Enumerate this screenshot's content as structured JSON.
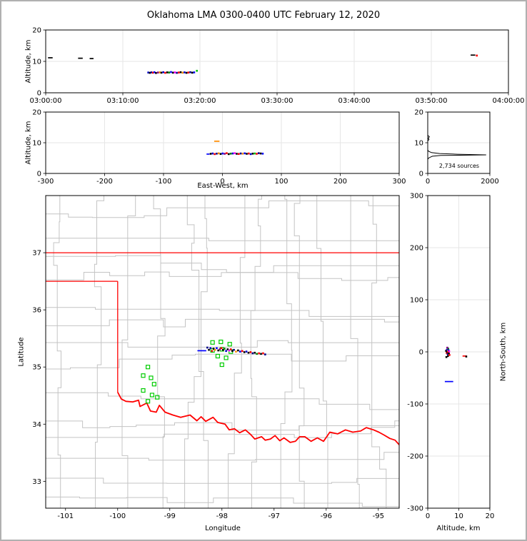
{
  "figure": {
    "title": "Oklahoma LMA 0300-0400 UTC February 12, 2020"
  },
  "chart_data": [
    {
      "id": "time_height",
      "type": "scatter",
      "title": "",
      "xlabel": "",
      "ylabel": "Altitude, km",
      "xlim": [
        0,
        60
      ],
      "ylim": [
        0,
        20
      ],
      "grid": true,
      "x_ticks": [
        {
          "v": 0,
          "label": "03:00:00"
        },
        {
          "v": 10,
          "label": "03:10:00"
        },
        {
          "v": 20,
          "label": "03:20:00"
        },
        {
          "v": 30,
          "label": "03:30:00"
        },
        {
          "v": 40,
          "label": "03:40:00"
        },
        {
          "v": 50,
          "label": "03:50:00"
        },
        {
          "v": 60,
          "label": "04:00:00"
        }
      ],
      "y_ticks": [
        {
          "v": 0,
          "label": "0"
        },
        {
          "v": 10,
          "label": "10"
        },
        {
          "v": 20,
          "label": "20"
        }
      ],
      "segments": [
        [
          0.3,
          11.15,
          0.9,
          11.15,
          "#000000"
        ],
        [
          4.2,
          11.0,
          4.8,
          11.0,
          "#000000"
        ],
        [
          5.7,
          10.9,
          6.2,
          10.9,
          "#000000"
        ],
        [
          55.1,
          12.0,
          55.7,
          12.0,
          "#000000"
        ]
      ],
      "points": [
        [
          13.3,
          6.45,
          "#0000cd"
        ],
        [
          13.5,
          6.35,
          "#000000"
        ],
        [
          13.7,
          6.5,
          "#00008b"
        ],
        [
          13.9,
          6.4,
          "#ff0000"
        ],
        [
          14.1,
          6.55,
          "#0000ff"
        ],
        [
          14.3,
          6.3,
          "#000000"
        ],
        [
          14.55,
          6.45,
          "#800080"
        ],
        [
          14.8,
          6.5,
          "#ff8c00"
        ],
        [
          15.0,
          6.4,
          "#000000"
        ],
        [
          15.25,
          6.55,
          "#0000cd"
        ],
        [
          15.5,
          6.35,
          "#ff0000"
        ],
        [
          15.75,
          6.5,
          "#000000"
        ],
        [
          16.0,
          6.45,
          "#008000"
        ],
        [
          16.25,
          6.6,
          "#0000ff"
        ],
        [
          16.5,
          6.4,
          "#000000"
        ],
        [
          16.75,
          6.5,
          "#ff00ff"
        ],
        [
          17.0,
          6.35,
          "#00008b"
        ],
        [
          17.25,
          6.45,
          "#ff0000"
        ],
        [
          17.5,
          6.55,
          "#000000"
        ],
        [
          17.75,
          6.4,
          "#ff8c00"
        ],
        [
          18.0,
          6.5,
          "#0000cd"
        ],
        [
          18.25,
          6.35,
          "#000000"
        ],
        [
          18.5,
          6.45,
          "#ff0000"
        ],
        [
          18.75,
          6.55,
          "#00008b"
        ],
        [
          19.0,
          6.4,
          "#000000"
        ],
        [
          19.25,
          6.5,
          "#0000ff"
        ],
        [
          19.6,
          7.0,
          "#00c000"
        ],
        [
          55.9,
          11.85,
          "#ff0000"
        ]
      ]
    },
    {
      "id": "ew_height",
      "type": "scatter",
      "xlabel": "East-West, km",
      "ylabel": "Altitude, km",
      "xlim": [
        -300,
        300
      ],
      "ylim": [
        0,
        20
      ],
      "grid": true,
      "x_ticks": [
        {
          "v": -300,
          "label": "-300"
        },
        {
          "v": -200,
          "label": "-200"
        },
        {
          "v": -100,
          "label": "-100"
        },
        {
          "v": 0,
          "label": "0"
        },
        {
          "v": 100,
          "label": "100"
        },
        {
          "v": 200,
          "label": "200"
        },
        {
          "v": 300,
          "label": "300"
        }
      ],
      "y_ticks": [
        {
          "v": 0,
          "label": "0"
        },
        {
          "v": 10,
          "label": "10"
        },
        {
          "v": 20,
          "label": "20"
        }
      ],
      "segments": [
        [
          -14,
          10.5,
          -5,
          10.5,
          "#ff8c00"
        ],
        [
          -27,
          6.3,
          -22,
          6.3,
          "#0000ff"
        ]
      ],
      "points": [
        [
          -20,
          6.4,
          "#000000"
        ],
        [
          -16.6,
          6.5,
          "#0000cd"
        ],
        [
          -13.2,
          6.3,
          "#ff0000"
        ],
        [
          -9.8,
          6.45,
          "#00008b"
        ],
        [
          -6.4,
          6.55,
          "#ff8c00"
        ],
        [
          -3,
          6.35,
          "#000000"
        ],
        [
          0.4,
          6.5,
          "#0000ff"
        ],
        [
          3.8,
          6.4,
          "#800080"
        ],
        [
          7.2,
          6.6,
          "#ff0000"
        ],
        [
          10.6,
          6.3,
          "#000000"
        ],
        [
          14,
          6.45,
          "#008000"
        ],
        [
          17.4,
          6.5,
          "#0000cd"
        ],
        [
          20.8,
          6.6,
          "#ff00ff"
        ],
        [
          24.2,
          6.4,
          "#000000"
        ],
        [
          27.6,
          6.35,
          "#ff0000"
        ],
        [
          31,
          6.5,
          "#00008b"
        ],
        [
          34.4,
          6.45,
          "#ff8c00"
        ],
        [
          37.8,
          6.55,
          "#0000ff"
        ],
        [
          41.2,
          6.4,
          "#000000"
        ],
        [
          44.6,
          6.5,
          "#ff0000"
        ],
        [
          48,
          6.3,
          "#0000cd"
        ],
        [
          51.4,
          6.45,
          "#000000"
        ],
        [
          54.8,
          6.5,
          "#00c000"
        ],
        [
          58.2,
          6.4,
          "#ff0000"
        ],
        [
          61.6,
          6.6,
          "#00008b"
        ],
        [
          65,
          6.5,
          "#000000"
        ],
        [
          68.4,
          6.45,
          "#0000ff"
        ]
      ]
    },
    {
      "id": "alt_histogram",
      "type": "line",
      "xlabel": "",
      "ylabel": "",
      "annotation": "2,734 sources",
      "xlim": [
        0,
        2000
      ],
      "ylim": [
        0,
        20
      ],
      "grid": true,
      "x_ticks": [
        {
          "v": 0,
          "label": "0"
        },
        {
          "v": 2000,
          "label": "2000"
        }
      ],
      "y_ticks": [
        {
          "v": 0,
          "label": "0"
        },
        {
          "v": 10,
          "label": "10"
        },
        {
          "v": 20,
          "label": "20"
        }
      ],
      "profile": [
        [
          0,
          4.6
        ],
        [
          40,
          5.1
        ],
        [
          150,
          5.6
        ],
        [
          420,
          5.85
        ],
        [
          1880,
          6.05
        ],
        [
          950,
          6.25
        ],
        [
          380,
          6.5
        ],
        [
          120,
          6.8
        ],
        [
          30,
          7.2
        ],
        [
          0,
          7.6
        ],
        [
          0,
          10.6
        ],
        [
          40,
          11.0
        ],
        [
          20,
          11.4
        ],
        [
          50,
          12.0
        ],
        [
          0,
          12.4
        ]
      ],
      "profile_color": "#000000"
    },
    {
      "id": "plan_view",
      "type": "scatter",
      "xlabel": "Longitude",
      "ylabel": "Latitude",
      "xlim": [
        -101.38,
        -94.6
      ],
      "ylim": [
        32.53,
        38.0
      ],
      "grid": false,
      "x_ticks": [
        {
          "v": -101,
          "label": "-101"
        },
        {
          "v": -100,
          "label": "-100"
        },
        {
          "v": -99,
          "label": "-99"
        },
        {
          "v": -98,
          "label": "-98"
        },
        {
          "v": -97,
          "label": "-97"
        },
        {
          "v": -96,
          "label": "-96"
        },
        {
          "v": -95,
          "label": "-95"
        }
      ],
      "y_ticks": [
        {
          "v": 33,
          "label": "33"
        },
        {
          "v": 34,
          "label": "34"
        },
        {
          "v": 35,
          "label": "35"
        },
        {
          "v": 36,
          "label": "36"
        },
        {
          "v": 37,
          "label": "37"
        }
      ],
      "border_color": "#ff0000",
      "county_grid": {
        "seed": 13,
        "lon_spacing": 0.52,
        "lat_spacing": 0.38,
        "jitter": 0.15,
        "color": "#c4c4c4"
      },
      "state_lines": [
        [
          [
            -101.38,
            37.0
          ],
          [
            -94.6,
            37.0
          ]
        ],
        [
          [
            -101.38,
            36.5
          ],
          [
            -100.0,
            36.5
          ]
        ],
        [
          [
            -100.0,
            36.5
          ],
          [
            -100.0,
            34.56
          ]
        ]
      ],
      "river": [
        [
          -100.0,
          34.56
        ],
        [
          -99.93,
          34.44
        ],
        [
          -99.84,
          34.4
        ],
        [
          -99.71,
          34.39
        ],
        [
          -99.6,
          34.42
        ],
        [
          -99.57,
          34.31
        ],
        [
          -99.44,
          34.37
        ],
        [
          -99.37,
          34.23
        ],
        [
          -99.26,
          34.21
        ],
        [
          -99.2,
          34.33
        ],
        [
          -99.09,
          34.21
        ],
        [
          -98.94,
          34.16
        ],
        [
          -98.79,
          34.12
        ],
        [
          -98.61,
          34.16
        ],
        [
          -98.48,
          34.06
        ],
        [
          -98.4,
          34.13
        ],
        [
          -98.31,
          34.05
        ],
        [
          -98.17,
          34.12
        ],
        [
          -98.08,
          34.03
        ],
        [
          -97.94,
          34.0
        ],
        [
          -97.86,
          33.9
        ],
        [
          -97.76,
          33.92
        ],
        [
          -97.66,
          33.85
        ],
        [
          -97.55,
          33.9
        ],
        [
          -97.45,
          33.82
        ],
        [
          -97.37,
          33.74
        ],
        [
          -97.24,
          33.78
        ],
        [
          -97.17,
          33.72
        ],
        [
          -97.07,
          33.74
        ],
        [
          -96.98,
          33.8
        ],
        [
          -96.89,
          33.71
        ],
        [
          -96.81,
          33.76
        ],
        [
          -96.69,
          33.68
        ],
        [
          -96.59,
          33.7
        ],
        [
          -96.51,
          33.78
        ],
        [
          -96.41,
          33.78
        ],
        [
          -96.29,
          33.7
        ],
        [
          -96.17,
          33.76
        ],
        [
          -96.05,
          33.7
        ],
        [
          -95.93,
          33.86
        ],
        [
          -95.78,
          33.83
        ],
        [
          -95.63,
          33.9
        ],
        [
          -95.49,
          33.86
        ],
        [
          -95.34,
          33.88
        ],
        [
          -95.23,
          33.94
        ],
        [
          -95.09,
          33.9
        ],
        [
          -94.99,
          33.86
        ],
        [
          -94.89,
          33.81
        ],
        [
          -94.78,
          33.75
        ],
        [
          -94.68,
          33.72
        ],
        [
          -94.6,
          33.64
        ]
      ],
      "station_color": "#00cc00",
      "stations": [
        [
          -99.42,
          35.0
        ],
        [
          -99.51,
          34.85
        ],
        [
          -99.36,
          34.81
        ],
        [
          -99.3,
          34.7
        ],
        [
          -99.51,
          34.59
        ],
        [
          -99.34,
          34.51
        ],
        [
          -99.42,
          34.4
        ],
        [
          -99.24,
          34.47
        ],
        [
          -98.18,
          35.43
        ],
        [
          -98.02,
          35.44
        ],
        [
          -97.85,
          35.4
        ],
        [
          -98.18,
          35.29
        ],
        [
          -98.0,
          35.31
        ],
        [
          -97.83,
          35.27
        ],
        [
          -98.08,
          35.19
        ],
        [
          -97.92,
          35.16
        ],
        [
          -98.0,
          35.04
        ]
      ],
      "segments": [
        [
          -98.47,
          35.285,
          -98.3,
          35.285,
          "#0000ff"
        ]
      ],
      "points": [
        [
          -98.28,
          35.34,
          "#00008b"
        ],
        [
          -98.25,
          35.3,
          "#000000"
        ],
        [
          -98.22,
          35.33,
          "#0000cd"
        ],
        [
          -98.19,
          35.28,
          "#ff0000"
        ],
        [
          -98.16,
          35.32,
          "#000000"
        ],
        [
          -98.13,
          35.3,
          "#ff8c00"
        ],
        [
          -98.1,
          35.33,
          "#0000ff"
        ],
        [
          -98.07,
          35.29,
          "#000000"
        ],
        [
          -98.04,
          35.31,
          "#800080"
        ],
        [
          -98.01,
          35.33,
          "#ff0000"
        ],
        [
          -97.98,
          35.3,
          "#000000"
        ],
        [
          -97.95,
          35.32,
          "#008000"
        ],
        [
          -97.92,
          35.28,
          "#0000cd"
        ],
        [
          -97.89,
          35.31,
          "#000000"
        ],
        [
          -97.86,
          35.29,
          "#ff00ff"
        ],
        [
          -97.83,
          35.31,
          "#ff0000"
        ],
        [
          -97.8,
          35.28,
          "#000000"
        ],
        [
          -97.77,
          35.3,
          "#00008b"
        ],
        [
          -97.73,
          35.27,
          "#ff8c00"
        ],
        [
          -97.69,
          35.29,
          "#000000"
        ],
        [
          -97.65,
          35.27,
          "#0000ff"
        ],
        [
          -97.61,
          35.28,
          "#ff0000"
        ],
        [
          -97.57,
          35.26,
          "#000000"
        ],
        [
          -97.53,
          35.27,
          "#0000cd"
        ],
        [
          -97.49,
          35.25,
          "#000000"
        ],
        [
          -97.45,
          35.26,
          "#ff0000"
        ],
        [
          -97.41,
          35.24,
          "#00008b"
        ],
        [
          -97.37,
          35.25,
          "#000000"
        ],
        [
          -97.33,
          35.23,
          "#008000"
        ],
        [
          -97.29,
          35.24,
          "#ff0000"
        ],
        [
          -97.25,
          35.23,
          "#000000"
        ],
        [
          -97.21,
          35.24,
          "#ff0000"
        ],
        [
          -97.17,
          35.22,
          "#00008b"
        ]
      ]
    },
    {
      "id": "ns_height",
      "type": "scatter",
      "xlabel": "Altitude, km",
      "ylabel": "North-South, km",
      "ylabel_side": "right",
      "xlim": [
        0,
        20
      ],
      "ylim": [
        -300,
        300
      ],
      "grid": true,
      "x_ticks": [
        {
          "v": 0,
          "label": "0"
        },
        {
          "v": 10,
          "label": "10"
        },
        {
          "v": 20,
          "label": "20"
        }
      ],
      "y_ticks": [
        {
          "v": 300,
          "label": "300"
        },
        {
          "v": 200,
          "label": "200"
        },
        {
          "v": 100,
          "label": "100"
        },
        {
          "v": 0,
          "label": "0"
        },
        {
          "v": -100,
          "label": "-100"
        },
        {
          "v": -200,
          "label": "-200"
        },
        {
          "v": -300,
          "label": "-300"
        }
      ],
      "segments": [
        [
          5.5,
          -57,
          8.2,
          -57,
          "#0000ff"
        ],
        [
          11.2,
          -8,
          12.6,
          -8,
          "#ff0000"
        ]
      ],
      "points": [
        [
          5.9,
          2,
          "#000000"
        ],
        [
          6.1,
          -2,
          "#ff0000"
        ],
        [
          6.2,
          4,
          "#0000cd"
        ],
        [
          6.3,
          0,
          "#000000"
        ],
        [
          6.4,
          -4,
          "#00008b"
        ],
        [
          6.5,
          2,
          "#ff8c00"
        ],
        [
          6.5,
          -8,
          "#000000"
        ],
        [
          6.6,
          6,
          "#008000"
        ],
        [
          6.6,
          -1,
          "#ff0000"
        ],
        [
          6.7,
          3,
          "#0000ff"
        ],
        [
          6.8,
          -3,
          "#000000"
        ],
        [
          6.9,
          1,
          "#ff00ff"
        ],
        [
          7.0,
          -6,
          "#ff0000"
        ],
        [
          6.0,
          -10,
          "#000000"
        ],
        [
          6.3,
          8,
          "#800080"
        ],
        [
          12.4,
          -9,
          "#000000"
        ]
      ]
    }
  ]
}
